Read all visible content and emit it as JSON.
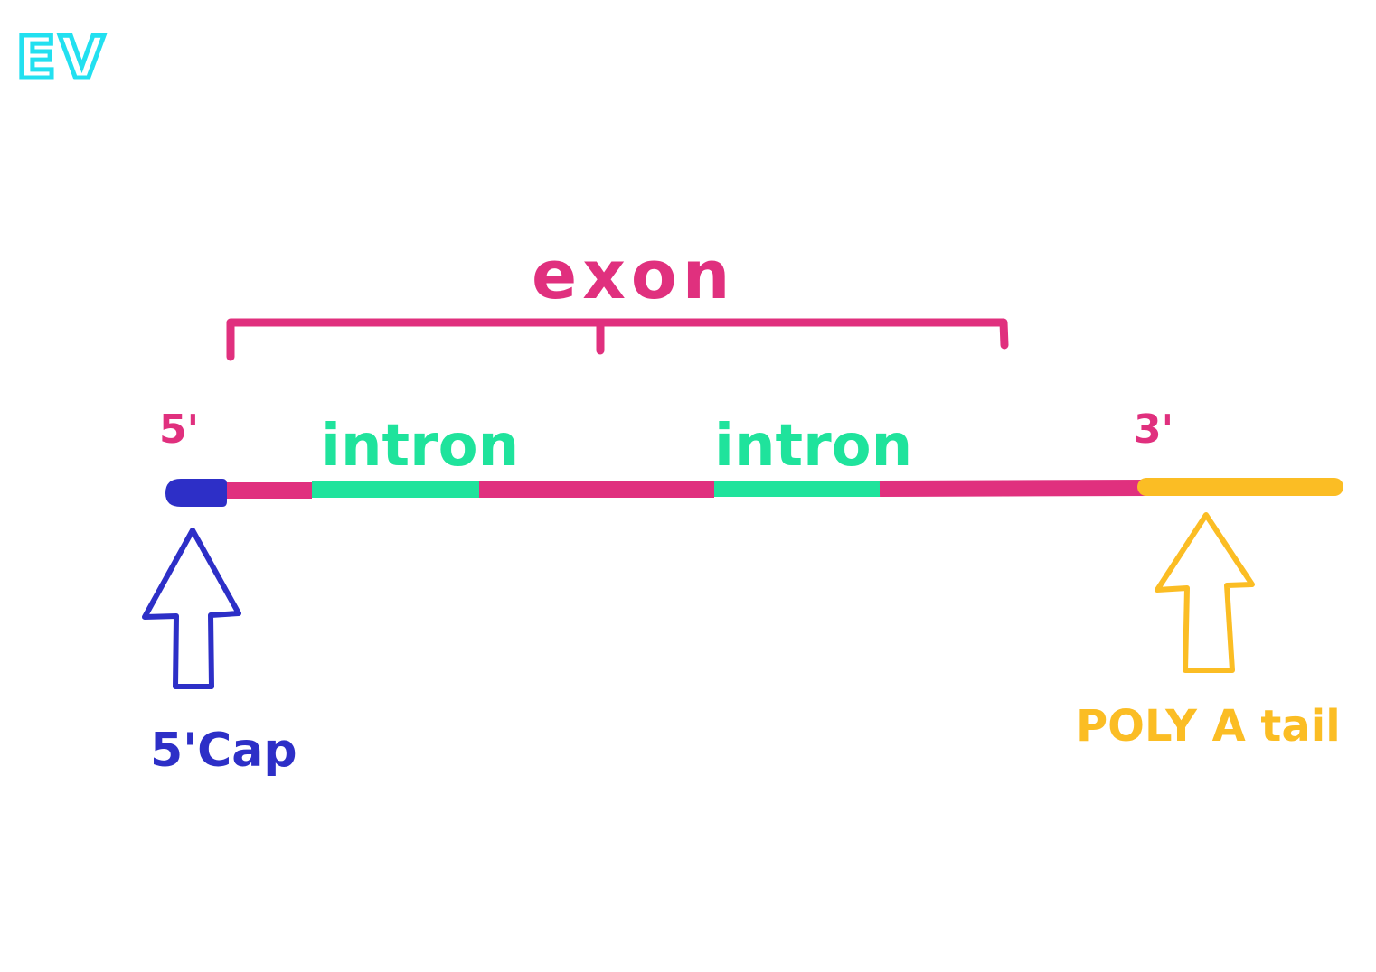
{
  "colors": {
    "exon": "#e0307e",
    "intron": "#1fe39c",
    "cap": "#2d2fc7",
    "tail": "#fbbd24",
    "initials": "#22e0f0",
    "background": "#ffffff"
  },
  "initials": "EV",
  "labels": {
    "exon": "exon",
    "intron_1": "intron",
    "intron_2": "intron",
    "five_prime": "5'",
    "three_prime": "3'",
    "cap": "5'Cap",
    "tail": "POLY A tail"
  },
  "icons": {
    "cap_arrow": "up-arrow-icon",
    "tail_arrow": "up-arrow-icon"
  }
}
